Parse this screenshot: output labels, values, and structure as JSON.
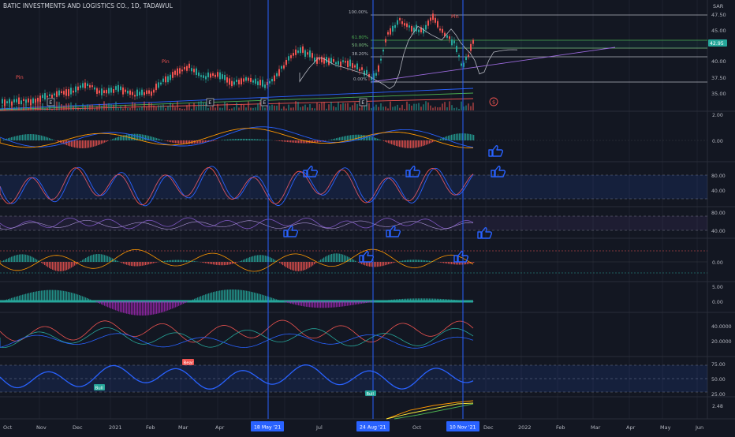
{
  "header": {
    "title": "BATIC INVESTMENTS AND LOGISTICS CO., 1D, TADAWUL",
    "currency": "SAR"
  },
  "price_axis": {
    "ticks": [
      "47.50",
      "45.00",
      "40.00",
      "37.50",
      "35.00"
    ],
    "last_price": "42.95"
  },
  "fib_levels": [
    "100.00%",
    "61.80%",
    "50.00%",
    "38.20%",
    "0.00%"
  ],
  "pattern_labels": {
    "pin_1": "Pin",
    "pin_2": "Pin",
    "pin_3": "Pin",
    "bear": "Bear",
    "bull_1": "Bull",
    "bull_2": "Bull"
  },
  "earnings_marker": "E",
  "dividend_marker": "$",
  "indicator_axes": {
    "macd": [
      "2.00",
      "0.00"
    ],
    "stoch": [
      "80.00",
      "40.00"
    ],
    "rsi_mix": [
      "80.00",
      "40.00"
    ],
    "osc": [
      "0.00"
    ],
    "hist": [
      "5.00",
      "0.00"
    ],
    "dmi": [
      "40.0000",
      "20.0000"
    ],
    "rsi": [
      "75.00",
      "50.00",
      "25.00"
    ],
    "vol": [
      "2.48"
    ]
  },
  "time_axis": {
    "labels": [
      "Oct",
      "Nov",
      "Dec",
      "2021",
      "Feb",
      "Mar",
      "Apr",
      "Jul",
      "Oct",
      "Dec",
      "2022",
      "Feb",
      "Mar",
      "Apr",
      "May",
      "Jun"
    ],
    "highlighted": [
      "18 May '21",
      "24 Aug '21",
      "10 Nov '21"
    ]
  },
  "colors": {
    "background": "#131722",
    "bull": "#26a69a",
    "bear": "#ef5350",
    "accent_blue": "#2962ff",
    "text": "#b2b5be"
  }
}
